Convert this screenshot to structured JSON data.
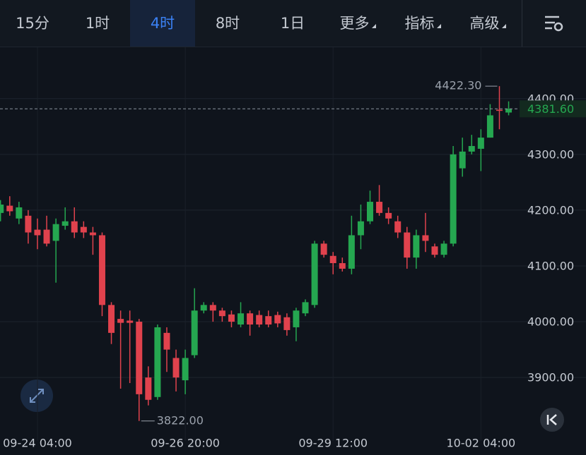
{
  "toolbar": {
    "tabs": [
      "15分",
      "1时",
      "4时",
      "8时",
      "1日",
      "更多",
      "指标",
      "高级"
    ],
    "active": 2
  },
  "chart_data": {
    "type": "candlestick",
    "categories": [
      null,
      null,
      null,
      null,
      "09-24 04:00",
      null,
      null,
      null,
      null,
      null,
      null,
      null,
      null,
      null,
      null,
      null,
      null,
      null,
      null,
      null,
      "09-26 20:00",
      null,
      null,
      null,
      null,
      null,
      null,
      null,
      null,
      null,
      null,
      null,
      null,
      null,
      null,
      null,
      "09-29 12:00",
      null,
      null,
      null,
      null,
      null,
      null,
      null,
      null,
      null,
      null,
      null,
      null,
      null,
      null,
      null,
      "10-02 04:00",
      null,
      null,
      null
    ],
    "open": [
      4195,
      4208,
      4185,
      4190,
      4165,
      4165,
      4145,
      4172,
      4180,
      4170,
      4160,
      4155,
      4030,
      4005,
      4002,
      4000,
      3900,
      3865,
      3980,
      3935,
      3895,
      3940,
      4020,
      4030,
      4020,
      4013,
      3995,
      4015,
      4012,
      4010,
      4012,
      4008,
      3990,
      4015,
      4030,
      4140,
      4118,
      4105,
      4095,
      4155,
      4180,
      4215,
      4195,
      4180,
      4160,
      4115,
      4155,
      4135,
      4120,
      4140,
      4275,
      4305,
      4310,
      4330,
      4380,
      4375
    ],
    "high": [
      4218,
      4225,
      4215,
      4200,
      4185,
      4190,
      4185,
      4205,
      4205,
      4180,
      4170,
      4160,
      4035,
      4020,
      4020,
      4005,
      3920,
      3995,
      3990,
      3950,
      3950,
      4060,
      4035,
      4035,
      4025,
      4020,
      4035,
      4020,
      4020,
      4020,
      4018,
      4015,
      4025,
      4040,
      4145,
      4145,
      4125,
      4115,
      4190,
      4210,
      4235,
      4245,
      4205,
      4190,
      4170,
      4165,
      4195,
      4140,
      4145,
      4315,
      4330,
      4335,
      4345,
      4390,
      4422.3,
      4395
    ],
    "low": [
      4180,
      4190,
      4175,
      4140,
      4130,
      4135,
      4070,
      4165,
      4150,
      4150,
      4120,
      4010,
      3960,
      3880,
      3890,
      3822,
      3850,
      3860,
      3910,
      3875,
      3870,
      3935,
      4015,
      4000,
      4000,
      3990,
      3990,
      3975,
      3990,
      3990,
      3990,
      3975,
      3965,
      4010,
      4025,
      4115,
      4085,
      4090,
      4085,
      4130,
      4175,
      4190,
      4175,
      4150,
      4095,
      4095,
      4125,
      4115,
      4115,
      4135,
      4260,
      4300,
      4270,
      4330,
      4345,
      4370
    ],
    "close": [
      4210,
      4198,
      4205,
      4160,
      4155,
      4140,
      4175,
      4180,
      4160,
      4160,
      4155,
      4030,
      3980,
      3998,
      3998,
      3870,
      3860,
      3990,
      3950,
      3900,
      3935,
      4020,
      4030,
      4020,
      4010,
      4000,
      4015,
      3995,
      3995,
      3995,
      3997,
      3985,
      4020,
      4035,
      4140,
      4120,
      4105,
      4095,
      4155,
      4180,
      4215,
      4195,
      4185,
      4160,
      4115,
      4155,
      4145,
      4120,
      4140,
      4300,
      4305,
      4315,
      4330,
      4370,
      4378,
      4381.6
    ],
    "up_color": "#25a750",
    "down_color": "#e0424d",
    "ylim": [
      3799,
      4492
    ],
    "yticks": [
      {
        "value": 3900,
        "label": "3900.00"
      },
      {
        "value": 4000,
        "label": "4000.00"
      },
      {
        "value": 4100,
        "label": "4100.00"
      },
      {
        "value": 4200,
        "label": "4200.00"
      },
      {
        "value": 4300,
        "label": "4300.00"
      },
      {
        "value": 4400,
        "label": "4400.00"
      }
    ],
    "grid": true,
    "high_marker": {
      "value": 4422.3,
      "label": "4422.30"
    },
    "low_marker": {
      "value": 3822,
      "label": "3822.00"
    },
    "last_price": {
      "value": 4381.6,
      "label": "4381.60"
    }
  }
}
